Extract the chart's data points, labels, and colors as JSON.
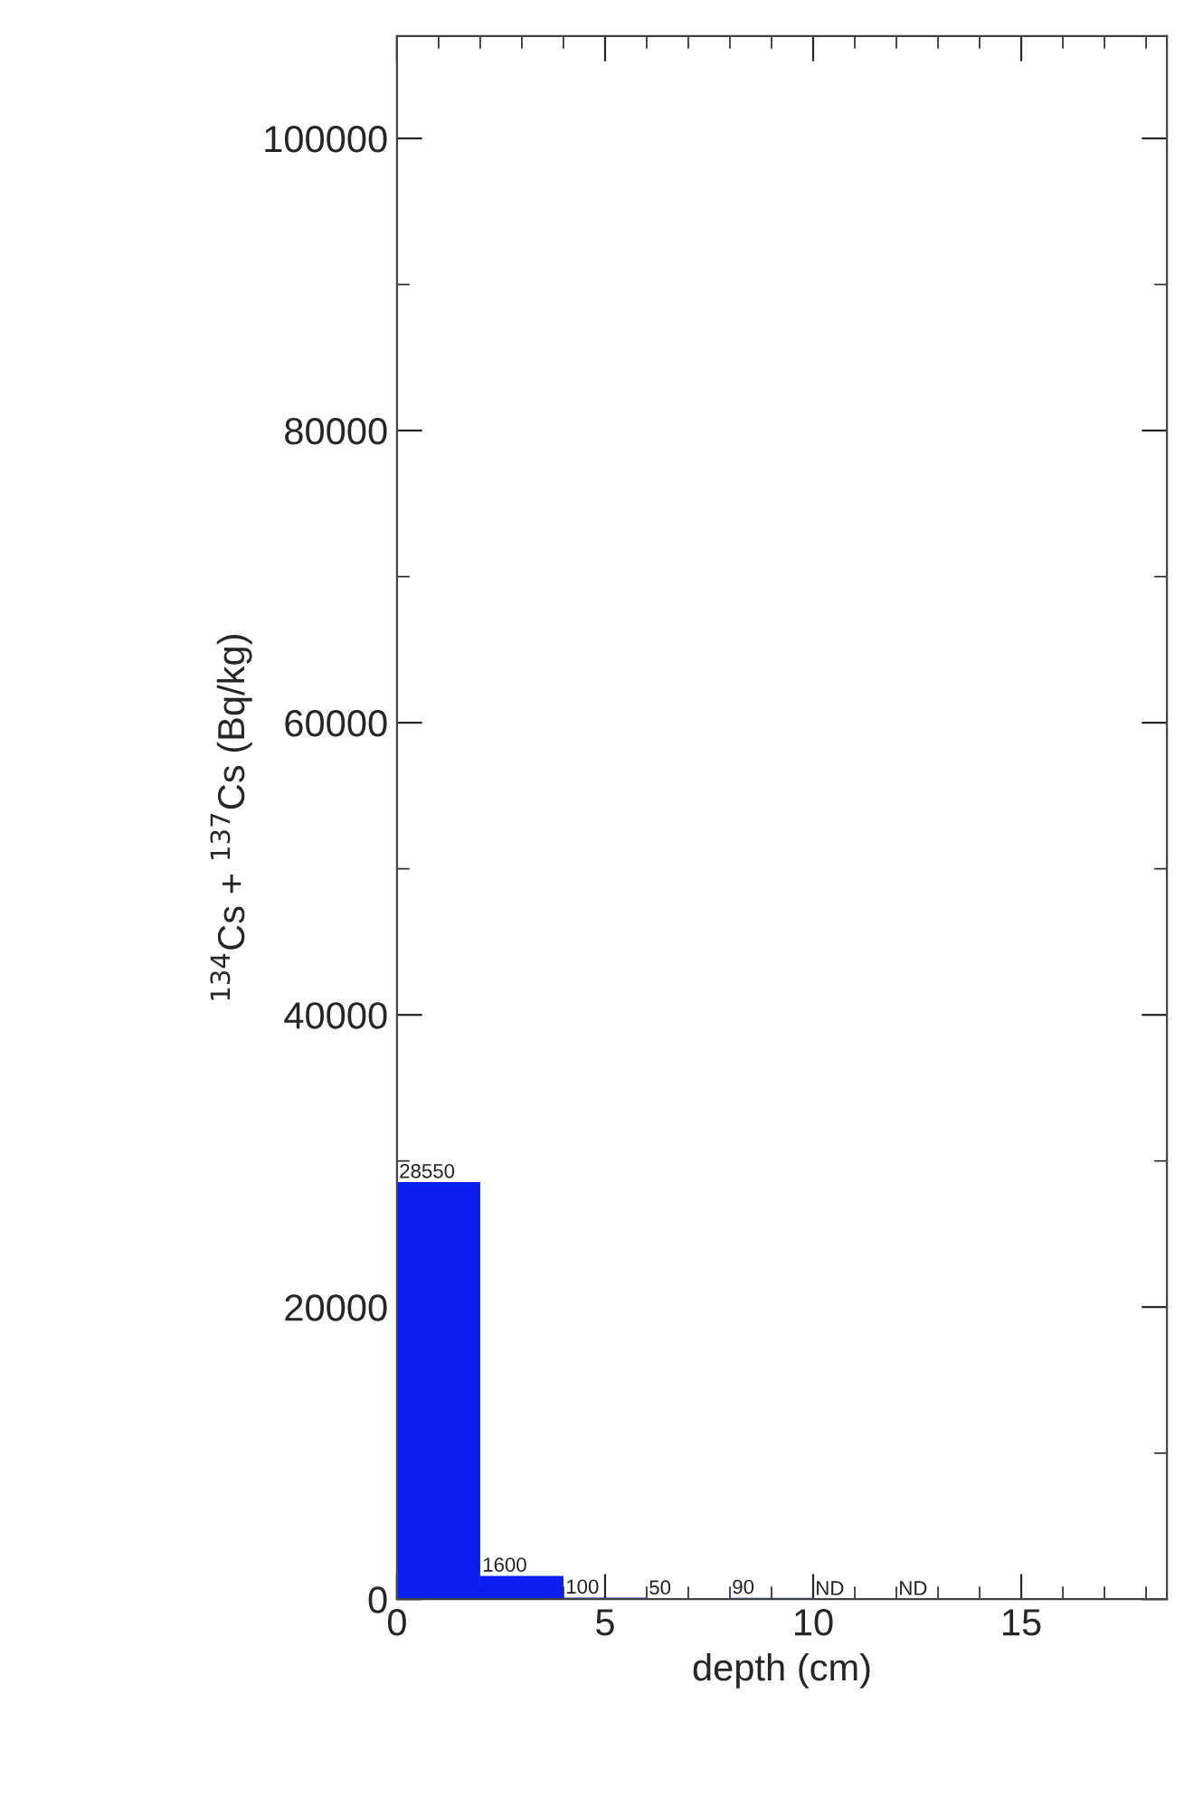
{
  "chart_data": {
    "type": "histogram",
    "xlabel": "depth (cm)",
    "ylabel": "$^{134}$Cs + $^{137}$Cs (Bq/kg)",
    "bins": [
      0,
      2,
      4,
      6,
      8,
      10,
      12,
      14
    ],
    "values": [
      28550,
      1600,
      100,
      50,
      90,
      null,
      null
    ],
    "value_labels": [
      "28550",
      "1600",
      "100",
      "50",
      "90",
      "ND",
      "ND"
    ],
    "color": "#0a1ef0",
    "xlim": [
      0,
      18.5
    ],
    "ylim": [
      0,
      107000
    ],
    "xticks": [
      0,
      {
        "value": 1,
        "label": null
      },
      {
        "value": 2,
        "label": null
      },
      {
        "value": 3,
        "label": null
      },
      {
        "value": 4,
        "label": null
      },
      5,
      {
        "value": 6,
        "label": null
      },
      {
        "value": 7,
        "label": null
      },
      {
        "value": 8,
        "label": null
      },
      {
        "value": 9,
        "label": null
      },
      10,
      {
        "value": 11,
        "label": null
      },
      {
        "value": 12,
        "label": null
      },
      {
        "value": 13,
        "label": null
      },
      {
        "value": 14,
        "label": null
      },
      15,
      {
        "value": 16,
        "label": null
      },
      {
        "value": 17,
        "label": null
      },
      {
        "value": 18,
        "label": null
      }
    ],
    "yticks": [
      0,
      {
        "value": 10000,
        "label": null
      },
      20000,
      {
        "value": 30000,
        "label": null
      },
      40000,
      {
        "value": 50000,
        "label": null
      },
      60000,
      {
        "value": 70000,
        "label": null
      },
      80000,
      {
        "value": 90000,
        "label": null
      },
      100000
    ],
    "grid": false
  }
}
